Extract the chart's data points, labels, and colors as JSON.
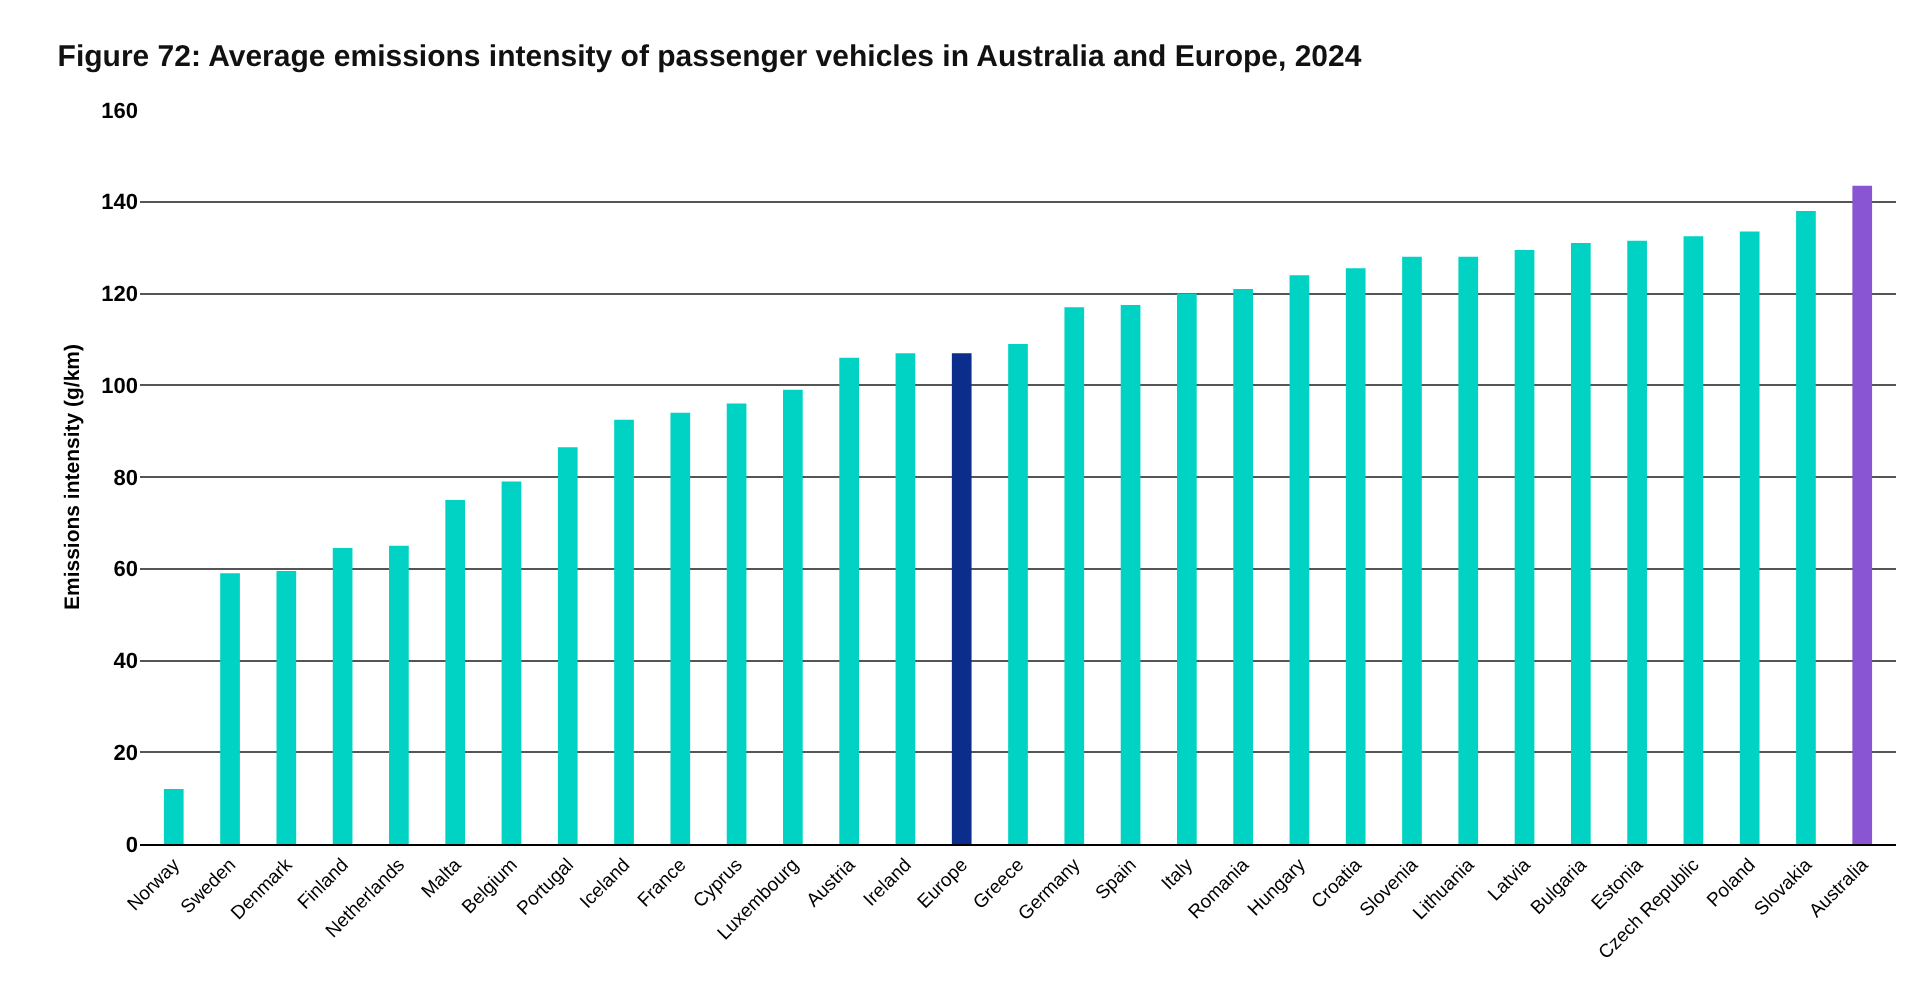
{
  "chart_data": {
    "type": "bar",
    "title": "Figure 72: Average emissions intensity of passenger vehicles in Australia and Europe, 2024",
    "ylabel": "Emissions intensity (g/km)",
    "categories": [
      "Norway",
      "Sweden",
      "Denmark",
      "Finland",
      "Netherlands",
      "Malta",
      "Belgium",
      "Portugal",
      "Iceland",
      "France",
      "Cyprus",
      "Luxembourg",
      "Austria",
      "Ireland",
      "Europe",
      "Greece",
      "Germany",
      "Spain",
      "Italy",
      "Romania",
      "Hungary",
      "Croatia",
      "Slovenia",
      "Lithuania",
      "Latvia",
      "Bulgaria",
      "Estonia",
      "Czech Republic",
      "Poland",
      "Slovakia",
      "Australia"
    ],
    "values": [
      12,
      59,
      59.5,
      64.5,
      65,
      75,
      79,
      86.5,
      92.5,
      94,
      96,
      99,
      106,
      107,
      107,
      109,
      117,
      117.5,
      120,
      121,
      124,
      125.5,
      128,
      128,
      129.5,
      131,
      131.5,
      132.5,
      133.5,
      138,
      143.5
    ],
    "colors": [
      "#00d3c3",
      "#00d3c3",
      "#00d3c3",
      "#00d3c3",
      "#00d3c3",
      "#00d3c3",
      "#00d3c3",
      "#00d3c3",
      "#00d3c3",
      "#00d3c3",
      "#00d3c3",
      "#00d3c3",
      "#00d3c3",
      "#00d3c3",
      "#0b2d8c",
      "#00d3c3",
      "#00d3c3",
      "#00d3c3",
      "#00d3c3",
      "#00d3c3",
      "#00d3c3",
      "#00d3c3",
      "#00d3c3",
      "#00d3c3",
      "#00d3c3",
      "#00d3c3",
      "#00d3c3",
      "#00d3c3",
      "#00d3c3",
      "#00d3c3",
      "#8a55d2"
    ],
    "ylim": [
      0,
      160
    ],
    "yticks": [
      0,
      20,
      40,
      60,
      80,
      100,
      120,
      140,
      160
    ],
    "grid": "y"
  }
}
